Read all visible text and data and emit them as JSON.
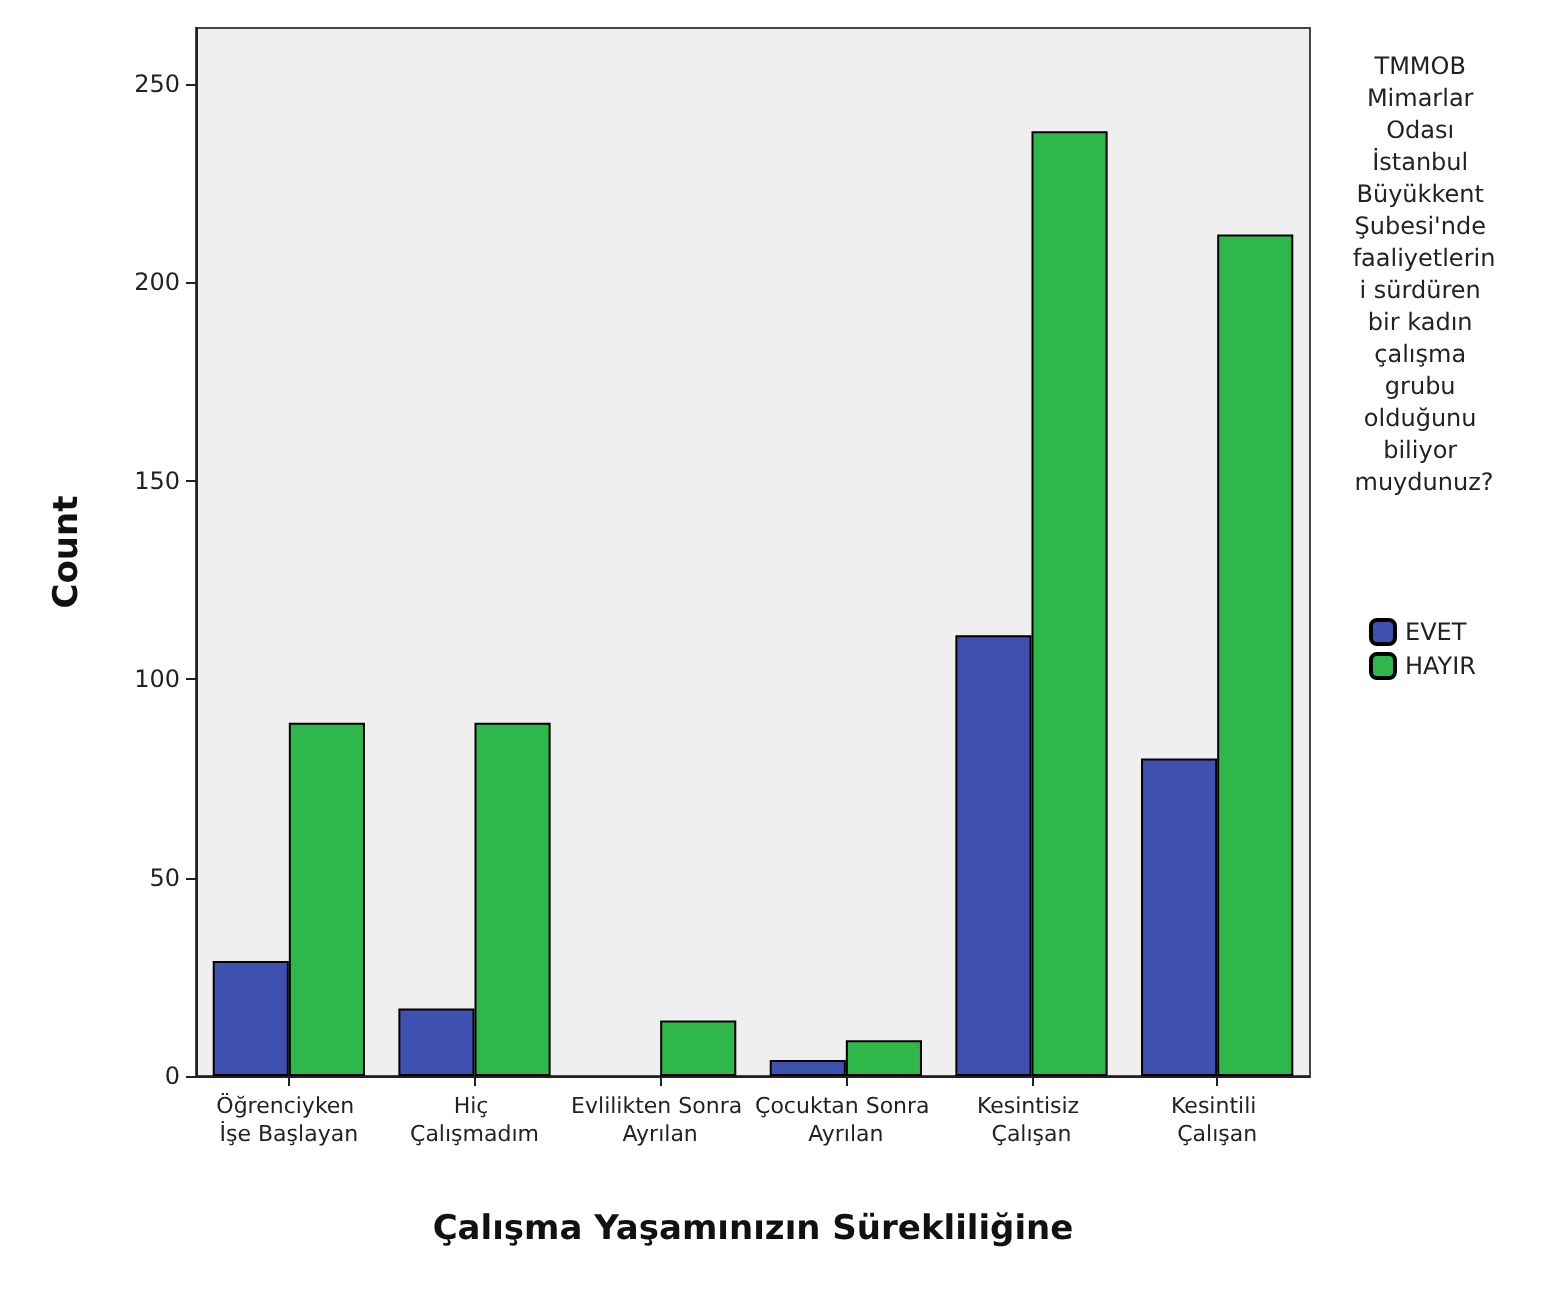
{
  "chart_data": {
    "type": "bar",
    "xlabel": "Çalışma Yaşamınızın Sürekliliğine",
    "ylabel": "Count",
    "legend_title": "TMMOB Mimarlar Odası İstanbul Büyükkent Şubesi'nde faaliyetlerini sürdüren bir kadın çalışma grubu olduğunu biliyor muydunuz?",
    "categories": [
      "Öğrenciyken İşe Başlayan",
      "Hiç Çalışmadım",
      "Evlilikten Sonra Ayrılan",
      "Çocuktan Sonra Ayrılan",
      "Kesintisiz Çalışan",
      "Kesintili Çalışan"
    ],
    "series": [
      {
        "name": "EVET",
        "color": "#3f51b0",
        "values": [
          29,
          17,
          null,
          4,
          111,
          80
        ]
      },
      {
        "name": "HAYIR",
        "color": "#2eb84a",
        "values": [
          89,
          89,
          14,
          9,
          238,
          212
        ]
      }
    ],
    "ylim": [
      0,
      264
    ],
    "yticks": [
      0,
      50,
      100,
      150,
      200,
      250
    ],
    "grid": false,
    "legend": "right"
  }
}
